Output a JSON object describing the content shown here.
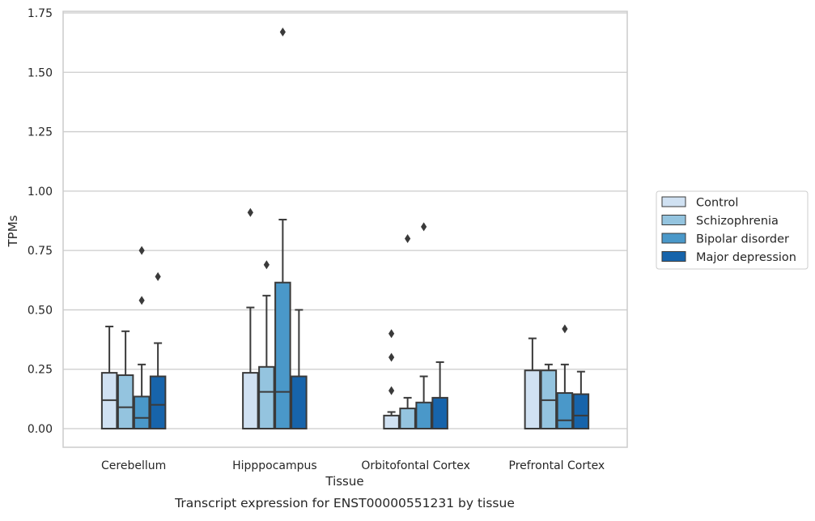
{
  "chart_data": {
    "type": "box",
    "title": "",
    "caption": "Transcript expression for ENST00000551231 by tissue",
    "xlabel": "Tissue",
    "ylabel": "TPMs",
    "ylim": [
      -0.08,
      1.76
    ],
    "yticks": [
      0.0,
      0.25,
      0.5,
      0.75,
      1.0,
      1.25,
      1.5,
      1.75
    ],
    "ytick_labels": [
      "0.00",
      "0.25",
      "0.50",
      "0.75",
      "1.00",
      "1.25",
      "1.50",
      "1.75"
    ],
    "grid": "horizontal",
    "legend_position": "right",
    "categories": [
      "Cerebellum",
      "Hipppocampus",
      "Orbitofontal Cortex",
      "Prefrontal Cortex"
    ],
    "series": [
      {
        "name": "Control",
        "color": "#d0e1f2",
        "boxes": [
          {
            "q1": 0.0,
            "median": 0.12,
            "q3": 0.235,
            "whisker_low": 0.0,
            "whisker_high": 0.43,
            "outliers": []
          },
          {
            "q1": 0.0,
            "median": 0.0,
            "q3": 0.235,
            "whisker_low": 0.0,
            "whisker_high": 0.51,
            "outliers": [
              0.91
            ]
          },
          {
            "q1": 0.0,
            "median": 0.0,
            "q3": 0.055,
            "whisker_low": 0.0,
            "whisker_high": 0.07,
            "outliers": [
              0.16,
              0.3,
              0.4
            ]
          },
          {
            "q1": 0.0,
            "median": 0.0,
            "q3": 0.245,
            "whisker_low": 0.0,
            "whisker_high": 0.38,
            "outliers": []
          }
        ]
      },
      {
        "name": "Schizophrenia",
        "color": "#94c4df",
        "boxes": [
          {
            "q1": 0.0,
            "median": 0.09,
            "q3": 0.225,
            "whisker_low": 0.0,
            "whisker_high": 0.41,
            "outliers": []
          },
          {
            "q1": 0.0,
            "median": 0.155,
            "q3": 0.26,
            "whisker_low": 0.0,
            "whisker_high": 0.56,
            "outliers": [
              0.69
            ]
          },
          {
            "q1": 0.0,
            "median": 0.0,
            "q3": 0.085,
            "whisker_low": 0.0,
            "whisker_high": 0.13,
            "outliers": [
              0.8
            ]
          },
          {
            "q1": 0.0,
            "median": 0.12,
            "q3": 0.245,
            "whisker_low": 0.0,
            "whisker_high": 0.27,
            "outliers": []
          }
        ]
      },
      {
        "name": "Bipolar disorder",
        "color": "#4a98c9",
        "boxes": [
          {
            "q1": 0.0,
            "median": 0.045,
            "q3": 0.135,
            "whisker_low": 0.0,
            "whisker_high": 0.27,
            "outliers": [
              0.54,
              0.75
            ]
          },
          {
            "q1": 0.0,
            "median": 0.155,
            "q3": 0.615,
            "whisker_low": 0.0,
            "whisker_high": 0.88,
            "outliers": [
              1.67
            ]
          },
          {
            "q1": 0.0,
            "median": 0.0,
            "q3": 0.11,
            "whisker_low": 0.0,
            "whisker_high": 0.22,
            "outliers": [
              0.85
            ]
          },
          {
            "q1": 0.0,
            "median": 0.035,
            "q3": 0.15,
            "whisker_low": 0.0,
            "whisker_high": 0.27,
            "outliers": [
              0.42
            ]
          }
        ]
      },
      {
        "name": "Major depression",
        "color": "#1764ab",
        "boxes": [
          {
            "q1": 0.0,
            "median": 0.1,
            "q3": 0.22,
            "whisker_low": 0.0,
            "whisker_high": 0.36,
            "outliers": [
              0.64
            ]
          },
          {
            "q1": 0.0,
            "median": 0.0,
            "q3": 0.22,
            "whisker_low": 0.0,
            "whisker_high": 0.5,
            "outliers": []
          },
          {
            "q1": 0.0,
            "median": 0.0,
            "q3": 0.13,
            "whisker_low": 0.0,
            "whisker_high": 0.28,
            "outliers": []
          },
          {
            "q1": 0.0,
            "median": 0.055,
            "q3": 0.145,
            "whisker_low": 0.0,
            "whisker_high": 0.24,
            "outliers": []
          }
        ]
      }
    ]
  }
}
